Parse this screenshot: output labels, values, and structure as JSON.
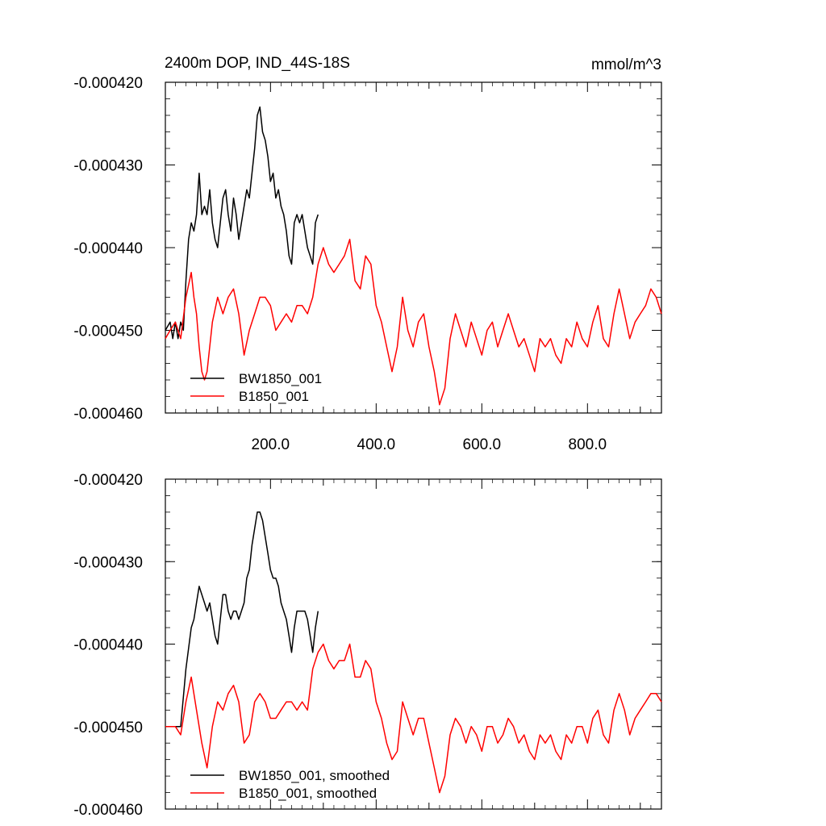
{
  "figure": {
    "title_left": "2400m DOP, IND_44S-18S",
    "title_right": "mmol/m^3"
  },
  "colors": {
    "BW1850_001": "#000000",
    "B1850_001": "#ff0000"
  },
  "chart_data": [
    {
      "type": "line",
      "title": "2400m DOP, IND_44S-18S",
      "units": "mmol/m^3",
      "xlim": [
        1,
        940
      ],
      "ylim": [
        -0.00046,
        -0.00042
      ],
      "x_ticks": [
        200,
        400,
        600,
        800
      ],
      "x_tick_labels": [
        "200.0",
        "400.0",
        "600.0",
        "800.0"
      ],
      "y_ticks": [
        -0.00042,
        -0.00043,
        -0.00044,
        -0.00045,
        -0.00046
      ],
      "y_tick_labels": [
        "-0.000420",
        "-0.000430",
        "-0.000440",
        "-0.000450",
        "-0.000460"
      ],
      "legend_position": "bottom-left",
      "series": [
        {
          "name": "BW1850_001",
          "color": "#000000",
          "x": [
            1,
            10,
            15,
            20,
            25,
            30,
            35,
            40,
            45,
            50,
            55,
            60,
            65,
            70,
            75,
            80,
            85,
            90,
            95,
            100,
            105,
            110,
            115,
            120,
            125,
            130,
            135,
            140,
            145,
            150,
            155,
            160,
            165,
            170,
            175,
            180,
            185,
            190,
            195,
            200,
            205,
            210,
            215,
            220,
            225,
            230,
            235,
            240,
            245,
            250,
            255,
            260,
            265,
            270,
            275,
            280,
            285,
            290
          ],
          "y": [
            -0.00045,
            -0.000449,
            -0.000451,
            -0.000449,
            -0.000451,
            -0.000449,
            -0.00045,
            -0.000444,
            -0.000439,
            -0.000437,
            -0.000438,
            -0.000436,
            -0.000431,
            -0.000436,
            -0.000435,
            -0.000436,
            -0.000433,
            -0.000437,
            -0.000439,
            -0.00044,
            -0.000437,
            -0.000434,
            -0.000433,
            -0.000436,
            -0.000438,
            -0.000434,
            -0.000436,
            -0.000439,
            -0.000437,
            -0.000435,
            -0.000433,
            -0.000434,
            -0.000431,
            -0.000428,
            -0.000424,
            -0.000423,
            -0.000426,
            -0.000427,
            -0.000429,
            -0.000432,
            -0.000431,
            -0.000434,
            -0.000433,
            -0.000435,
            -0.000436,
            -0.000438,
            -0.000441,
            -0.000442,
            -0.000437,
            -0.000436,
            -0.000437,
            -0.000436,
            -0.000438,
            -0.00044,
            -0.000441,
            -0.000442,
            -0.000437,
            -0.000436
          ]
        },
        {
          "name": "B1850_001",
          "color": "#ff0000",
          "x": [
            1,
            10,
            20,
            30,
            40,
            50,
            55,
            60,
            65,
            70,
            75,
            80,
            90,
            100,
            110,
            120,
            130,
            140,
            150,
            160,
            170,
            180,
            190,
            200,
            210,
            220,
            230,
            240,
            250,
            260,
            270,
            280,
            290,
            300,
            310,
            320,
            330,
            340,
            350,
            360,
            370,
            380,
            390,
            400,
            410,
            420,
            430,
            440,
            450,
            460,
            470,
            480,
            490,
            500,
            510,
            520,
            530,
            540,
            550,
            560,
            570,
            580,
            590,
            600,
            610,
            620,
            630,
            640,
            650,
            660,
            670,
            680,
            690,
            700,
            710,
            720,
            730,
            740,
            750,
            760,
            770,
            780,
            790,
            800,
            810,
            820,
            830,
            840,
            850,
            860,
            870,
            880,
            890,
            900,
            910,
            920,
            930,
            940
          ],
          "y": [
            -0.000451,
            -0.00045,
            -0.000449,
            -0.000451,
            -0.000446,
            -0.000443,
            -0.000446,
            -0.000448,
            -0.000452,
            -0.000455,
            -0.000456,
            -0.000455,
            -0.000449,
            -0.000446,
            -0.000448,
            -0.000446,
            -0.000445,
            -0.000448,
            -0.000453,
            -0.00045,
            -0.000448,
            -0.000446,
            -0.000446,
            -0.000447,
            -0.00045,
            -0.000449,
            -0.000448,
            -0.000449,
            -0.000447,
            -0.000447,
            -0.000448,
            -0.000446,
            -0.000442,
            -0.00044,
            -0.000442,
            -0.000443,
            -0.000442,
            -0.000441,
            -0.000439,
            -0.000444,
            -0.000445,
            -0.000441,
            -0.000442,
            -0.000447,
            -0.000449,
            -0.000452,
            -0.000455,
            -0.000452,
            -0.000446,
            -0.00045,
            -0.000452,
            -0.000449,
            -0.000448,
            -0.000452,
            -0.000455,
            -0.000459,
            -0.000457,
            -0.000451,
            -0.000448,
            -0.00045,
            -0.000452,
            -0.000449,
            -0.000451,
            -0.000453,
            -0.00045,
            -0.000449,
            -0.000452,
            -0.00045,
            -0.000448,
            -0.00045,
            -0.000452,
            -0.000451,
            -0.000453,
            -0.000455,
            -0.000451,
            -0.000452,
            -0.000451,
            -0.000453,
            -0.000454,
            -0.000451,
            -0.000452,
            -0.000449,
            -0.000451,
            -0.000452,
            -0.000449,
            -0.000447,
            -0.000451,
            -0.000452,
            -0.000448,
            -0.000445,
            -0.000448,
            -0.000451,
            -0.000449,
            -0.000448,
            -0.000447,
            -0.000445,
            -0.000446,
            -0.000448
          ]
        }
      ]
    },
    {
      "type": "line",
      "title": "",
      "xlim": [
        1,
        940
      ],
      "ylim": [
        -0.00046,
        -0.00042
      ],
      "y_ticks": [
        -0.00042,
        -0.00043,
        -0.00044,
        -0.00045,
        -0.00046
      ],
      "y_tick_labels": [
        "-0.000420",
        "-0.000430",
        "-0.000440",
        "-0.000450",
        "-0.000460"
      ],
      "legend_position": "bottom-left",
      "series": [
        {
          "name": "BW1850_001, smoothed",
          "color": "#000000",
          "x": [
            1,
            10,
            20,
            30,
            40,
            50,
            55,
            60,
            65,
            70,
            75,
            80,
            85,
            90,
            95,
            100,
            105,
            110,
            115,
            120,
            125,
            130,
            135,
            140,
            145,
            150,
            155,
            160,
            165,
            170,
            175,
            180,
            185,
            190,
            195,
            200,
            205,
            210,
            215,
            220,
            225,
            230,
            235,
            240,
            245,
            250,
            255,
            260,
            265,
            270,
            275,
            280,
            285,
            290
          ],
          "y": [
            -0.00045,
            -0.00045,
            -0.00045,
            -0.00045,
            -0.000443,
            -0.000438,
            -0.000437,
            -0.000435,
            -0.000433,
            -0.000434,
            -0.000435,
            -0.000436,
            -0.000435,
            -0.000437,
            -0.000439,
            -0.00044,
            -0.000437,
            -0.000434,
            -0.000434,
            -0.000436,
            -0.000437,
            -0.000436,
            -0.000436,
            -0.000437,
            -0.000436,
            -0.000435,
            -0.000432,
            -0.000431,
            -0.000428,
            -0.000426,
            -0.000424,
            -0.000424,
            -0.000425,
            -0.000427,
            -0.000429,
            -0.000431,
            -0.000432,
            -0.000432,
            -0.000433,
            -0.000435,
            -0.000436,
            -0.000437,
            -0.000439,
            -0.000441,
            -0.000438,
            -0.000436,
            -0.000436,
            -0.000436,
            -0.000436,
            -0.000437,
            -0.000439,
            -0.000441,
            -0.000438,
            -0.000436
          ]
        },
        {
          "name": "B1850_001, smoothed",
          "color": "#ff0000",
          "x": [
            1,
            10,
            20,
            30,
            40,
            50,
            60,
            70,
            80,
            90,
            100,
            110,
            120,
            130,
            140,
            150,
            160,
            170,
            180,
            190,
            200,
            210,
            220,
            230,
            240,
            250,
            260,
            270,
            280,
            290,
            300,
            310,
            320,
            330,
            340,
            350,
            360,
            370,
            380,
            390,
            400,
            410,
            420,
            430,
            440,
            450,
            460,
            470,
            480,
            490,
            500,
            510,
            520,
            530,
            540,
            550,
            560,
            570,
            580,
            590,
            600,
            610,
            620,
            630,
            640,
            650,
            660,
            670,
            680,
            690,
            700,
            710,
            720,
            730,
            740,
            750,
            760,
            770,
            780,
            790,
            800,
            810,
            820,
            830,
            840,
            850,
            860,
            870,
            880,
            890,
            900,
            910,
            920,
            930,
            940
          ],
          "y": [
            -0.00045,
            -0.00045,
            -0.00045,
            -0.000451,
            -0.000447,
            -0.000444,
            -0.000448,
            -0.000452,
            -0.000455,
            -0.00045,
            -0.000447,
            -0.000448,
            -0.000446,
            -0.000445,
            -0.000447,
            -0.000452,
            -0.000451,
            -0.000447,
            -0.000446,
            -0.000447,
            -0.000449,
            -0.000449,
            -0.000448,
            -0.000447,
            -0.000447,
            -0.000448,
            -0.000447,
            -0.000448,
            -0.000443,
            -0.000441,
            -0.00044,
            -0.000442,
            -0.000443,
            -0.000442,
            -0.000442,
            -0.00044,
            -0.000444,
            -0.000444,
            -0.000442,
            -0.000443,
            -0.000447,
            -0.000449,
            -0.000452,
            -0.000454,
            -0.000453,
            -0.000447,
            -0.000449,
            -0.000451,
            -0.000449,
            -0.000449,
            -0.000452,
            -0.000455,
            -0.000458,
            -0.000456,
            -0.000451,
            -0.000449,
            -0.00045,
            -0.000452,
            -0.00045,
            -0.000451,
            -0.000453,
            -0.00045,
            -0.00045,
            -0.000452,
            -0.000451,
            -0.000449,
            -0.00045,
            -0.000452,
            -0.000451,
            -0.000453,
            -0.000454,
            -0.000451,
            -0.000452,
            -0.000451,
            -0.000453,
            -0.000454,
            -0.000451,
            -0.000452,
            -0.00045,
            -0.00045,
            -0.000452,
            -0.000449,
            -0.000448,
            -0.000451,
            -0.000452,
            -0.000448,
            -0.000446,
            -0.000448,
            -0.000451,
            -0.000449,
            -0.000448,
            -0.000447,
            -0.000446,
            -0.000446,
            -0.000447
          ]
        }
      ]
    }
  ]
}
